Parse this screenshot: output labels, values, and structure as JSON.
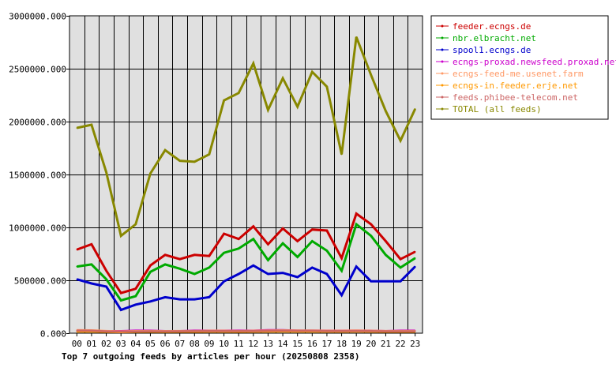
{
  "chart_data": {
    "type": "line",
    "title": "Top 7 outgoing feeds by articles per hour (20250808 2358)",
    "xlabel": "",
    "ylabel": "",
    "ylim": [
      0,
      3000000
    ],
    "y_ticks": [
      "0.000",
      "500000.000",
      "1000000.000",
      "1500000.000",
      "2000000.000",
      "2500000.000",
      "3000000.000"
    ],
    "categories": [
      "00",
      "01",
      "02",
      "03",
      "04",
      "05",
      "06",
      "07",
      "08",
      "09",
      "10",
      "11",
      "12",
      "13",
      "14",
      "15",
      "16",
      "17",
      "18",
      "19",
      "20",
      "21",
      "22",
      "23"
    ],
    "grid": true,
    "legend_position": "right",
    "series": [
      {
        "name": "feeder.ecngs.de",
        "color": "#cc0000",
        "values": [
          790000,
          840000,
          590000,
          380000,
          420000,
          640000,
          740000,
          700000,
          740000,
          730000,
          940000,
          890000,
          1010000,
          840000,
          990000,
          870000,
          980000,
          970000,
          710000,
          1130000,
          1030000,
          870000,
          700000,
          770000
        ]
      },
      {
        "name": "nbr.elbracht.net",
        "color": "#00aa00",
        "values": [
          630000,
          650000,
          510000,
          310000,
          350000,
          580000,
          650000,
          610000,
          560000,
          620000,
          760000,
          800000,
          890000,
          690000,
          850000,
          720000,
          870000,
          780000,
          590000,
          1030000,
          920000,
          740000,
          620000,
          710000
        ]
      },
      {
        "name": "spool1.ecngs.de",
        "color": "#0000cc",
        "values": [
          510000,
          470000,
          440000,
          220000,
          270000,
          300000,
          340000,
          320000,
          320000,
          340000,
          490000,
          560000,
          640000,
          560000,
          570000,
          530000,
          620000,
          560000,
          360000,
          630000,
          490000,
          490000,
          490000,
          630000
        ]
      },
      {
        "name": "ecngs-proxad.newsfeed.proxad.net",
        "color": "#cc00cc",
        "values": [
          20000,
          20000,
          20000,
          20000,
          25000,
          25000,
          20000,
          20000,
          25000,
          25000,
          25000,
          25000,
          25000,
          30000,
          30000,
          25000,
          25000,
          25000,
          25000,
          25000,
          25000,
          20000,
          25000,
          25000
        ]
      },
      {
        "name": "ecngs-feed-me.usenet.farm",
        "color": "#ff9966",
        "values": [
          30000,
          28000,
          22000,
          18000,
          20000,
          22000,
          20000,
          22000,
          22000,
          24000,
          24000,
          22000,
          24000,
          26000,
          28000,
          26000,
          26000,
          24000,
          24000,
          26000,
          24000,
          22000,
          22000,
          22000
        ]
      },
      {
        "name": "ecngs-in.feeder.erje.net",
        "color": "#ff9900",
        "values": [
          15000,
          15000,
          12000,
          10000,
          12000,
          13000,
          12000,
          13000,
          13000,
          14000,
          14000,
          13000,
          14000,
          15000,
          16000,
          15000,
          15000,
          14000,
          14000,
          15000,
          14000,
          13000,
          13000,
          13000
        ]
      },
      {
        "name": "feeds.phibee-telecom.net",
        "color": "#cc6666",
        "values": [
          25000,
          24000,
          18000,
          15000,
          17000,
          19000,
          18000,
          19000,
          20000,
          21000,
          21000,
          20000,
          21000,
          23000,
          25000,
          23000,
          23000,
          21000,
          21000,
          22000,
          21000,
          19000,
          19000,
          19000
        ]
      },
      {
        "name": "TOTAL (all feeds)",
        "color": "#888800",
        "values": [
          1940000,
          1970000,
          1520000,
          920000,
          1030000,
          1510000,
          1730000,
          1630000,
          1620000,
          1690000,
          2200000,
          2270000,
          2550000,
          2110000,
          2410000,
          2140000,
          2470000,
          2330000,
          1690000,
          2800000,
          2440000,
          2100000,
          1820000,
          2120000
        ]
      }
    ]
  }
}
